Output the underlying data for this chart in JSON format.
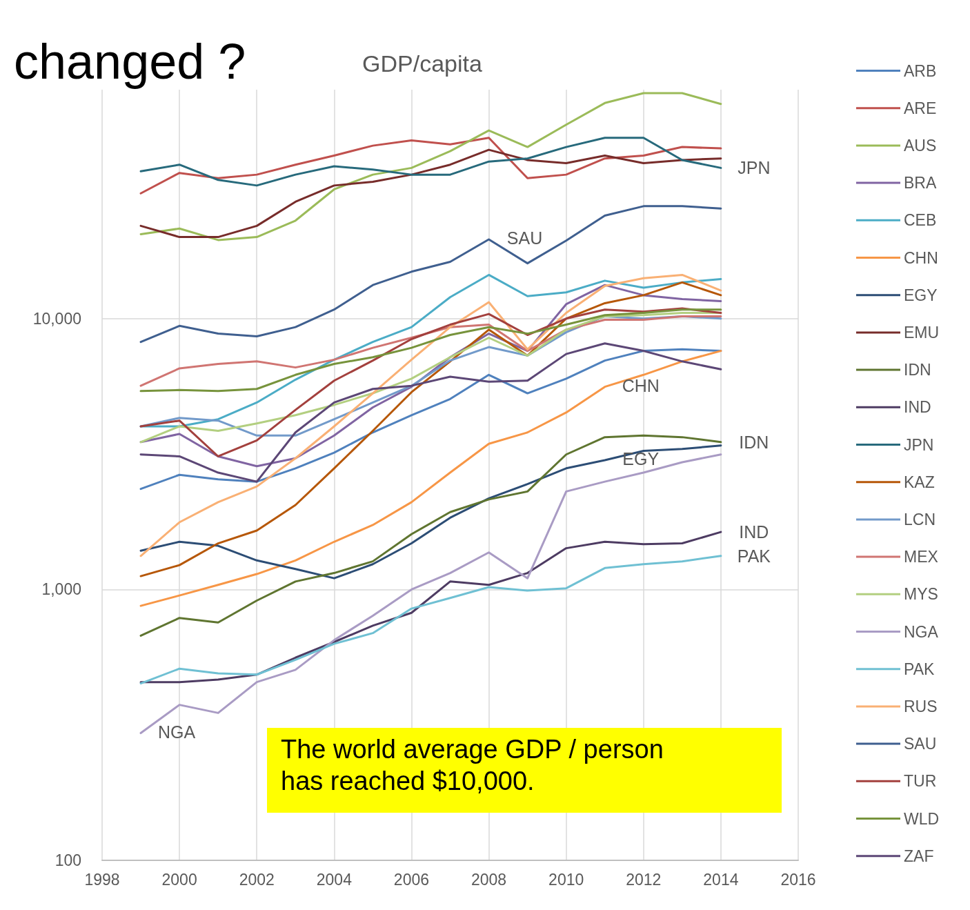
{
  "chart_data": {
    "type": "line",
    "title": "GDP/capita",
    "subtitle": "changed ?",
    "x": [
      1999,
      2000,
      2001,
      2002,
      2003,
      2004,
      2005,
      2006,
      2007,
      2008,
      2009,
      2010,
      2011,
      2012,
      2013,
      2014
    ],
    "xlim": [
      1998,
      2016
    ],
    "xticks": [
      1998,
      2000,
      2002,
      2004,
      2006,
      2008,
      2010,
      2012,
      2014,
      2016
    ],
    "ylim": [
      100,
      70000
    ],
    "yticks": [
      100,
      {
        "value": 1000,
        "label": "1,000"
      },
      {
        "value": 10000,
        "label": "10,000"
      }
    ],
    "log": "y",
    "grid": true,
    "legend": "right",
    "marker": "none",
    "line_style": "solid",
    "series": [
      {
        "name": "ARB",
        "color": "#4f81bd",
        "values": [
          2350,
          2650,
          2550,
          2500,
          2800,
          3200,
          3800,
          4400,
          5050,
          6200,
          5300,
          6000,
          7000,
          7600,
          7700,
          7600
        ]
      },
      {
        "name": "ARE",
        "color": "#c0504d",
        "values": [
          29000,
          34500,
          33000,
          34000,
          37000,
          40000,
          43500,
          45500,
          44000,
          46500,
          33000,
          34000,
          39000,
          40000,
          43000,
          42500
        ]
      },
      {
        "name": "AUS",
        "color": "#9bbb59",
        "values": [
          20500,
          21500,
          19500,
          20000,
          23000,
          30000,
          34000,
          36000,
          41500,
          49500,
          43000,
          52000,
          62500,
          68000,
          68000,
          62000
        ]
      },
      {
        "name": "BRA",
        "color": "#8064a2",
        "values": [
          3500,
          3750,
          3100,
          2850,
          3050,
          3700,
          4700,
          5600,
          7200,
          8800,
          7600,
          11300,
          13300,
          12200,
          11800,
          11600
        ]
      },
      {
        "name": "CEB",
        "color": "#4bacc6",
        "values": [
          4000,
          4000,
          4250,
          4900,
          5950,
          7050,
          8200,
          9300,
          12000,
          14500,
          12100,
          12500,
          13800,
          13000,
          13600,
          14000
        ]
      },
      {
        "name": "CHN",
        "color": "#f79646",
        "values": [
          870,
          950,
          1040,
          1140,
          1280,
          1500,
          1730,
          2100,
          2700,
          3450,
          3800,
          4500,
          5600,
          6200,
          6950,
          7600
        ]
      },
      {
        "name": "EGY",
        "color": "#2c4d75",
        "values": [
          1390,
          1500,
          1450,
          1280,
          1190,
          1100,
          1240,
          1480,
          1840,
          2170,
          2450,
          2800,
          3000,
          3250,
          3300,
          3400
        ]
      },
      {
        "name": "EMU",
        "color": "#772c2a",
        "values": [
          22000,
          20000,
          20000,
          22000,
          27000,
          31000,
          32000,
          34000,
          37000,
          42000,
          38500,
          37500,
          40000,
          37500,
          38500,
          39000
        ]
      },
      {
        "name": "IDN",
        "color": "#5f7530",
        "values": [
          675,
          785,
          755,
          910,
          1070,
          1150,
          1270,
          1600,
          1930,
          2150,
          2300,
          3150,
          3650,
          3700,
          3650,
          3500
        ]
      },
      {
        "name": "IND",
        "color": "#4d3b62",
        "values": [
          455,
          455,
          465,
          485,
          560,
          640,
          735,
          820,
          1070,
          1040,
          1150,
          1420,
          1500,
          1470,
          1480,
          1630
        ]
      },
      {
        "name": "JPN",
        "color": "#276a7c",
        "values": [
          35000,
          37000,
          32500,
          31000,
          34000,
          36500,
          35500,
          34000,
          34000,
          38000,
          39000,
          43000,
          46500,
          46500,
          38500,
          36000
        ]
      },
      {
        "name": "KAZ",
        "color": "#b65708",
        "values": [
          1120,
          1230,
          1480,
          1650,
          2050,
          2800,
          3850,
          5350,
          6950,
          9100,
          7300,
          10000,
          11400,
          12200,
          13600,
          12200
        ]
      },
      {
        "name": "LCN",
        "color": "#729aca",
        "values": [
          4000,
          4300,
          4200,
          3700,
          3700,
          4250,
          4900,
          5650,
          7000,
          7850,
          7300,
          8900,
          10200,
          10000,
          10200,
          10000
        ]
      },
      {
        "name": "MEX",
        "color": "#d07572",
        "values": [
          5650,
          6550,
          6800,
          6950,
          6600,
          7050,
          7800,
          8500,
          9300,
          9500,
          7600,
          9100,
          9900,
          9900,
          10200,
          10200
        ]
      },
      {
        "name": "MYS",
        "color": "#b3cf80",
        "values": [
          3500,
          4000,
          3850,
          4100,
          4400,
          4800,
          5300,
          6000,
          7200,
          8500,
          7300,
          9100,
          10200,
          10300,
          10500,
          10500
        ]
      },
      {
        "name": "NGA",
        "color": "#a99bc4",
        "values": [
          295,
          375,
          350,
          455,
          505,
          650,
          800,
          1000,
          1150,
          1370,
          1100,
          2300,
          2500,
          2700,
          2950,
          3150
        ]
      },
      {
        "name": "PAK",
        "color": "#6fc0d3",
        "values": [
          450,
          510,
          490,
          485,
          550,
          630,
          690,
          850,
          930,
          1020,
          990,
          1010,
          1200,
          1240,
          1270,
          1330
        ]
      },
      {
        "name": "RUS",
        "color": "#f9b074",
        "values": [
          1330,
          1770,
          2100,
          2400,
          3050,
          4000,
          5300,
          7050,
          9300,
          11500,
          7700,
          10500,
          13200,
          14100,
          14500,
          12700
        ]
      },
      {
        "name": "SAU",
        "color": "#3f5f8f",
        "values": [
          8200,
          9400,
          8800,
          8600,
          9300,
          10800,
          13300,
          14900,
          16200,
          19600,
          16000,
          19400,
          24000,
          26000,
          26000,
          25500
        ]
      },
      {
        "name": "TUR",
        "color": "#a3403d",
        "values": [
          4000,
          4200,
          3100,
          3550,
          4600,
          5900,
          7000,
          8400,
          9500,
          10400,
          8700,
          10000,
          10800,
          10600,
          10900,
          10500
        ]
      },
      {
        "name": "WLD",
        "color": "#77933c",
        "values": [
          5400,
          5450,
          5400,
          5500,
          6200,
          6800,
          7200,
          7800,
          8700,
          9300,
          8800,
          9500,
          10300,
          10500,
          10800,
          10800
        ]
      },
      {
        "name": "ZAF",
        "color": "#5c4776",
        "values": [
          3150,
          3100,
          2700,
          2500,
          3800,
          4900,
          5500,
          5650,
          6100,
          5850,
          5900,
          7400,
          8100,
          7600,
          6950,
          6500
        ]
      }
    ],
    "annotations": [
      {
        "text": "JPN",
        "x": 2014,
        "y": 36000
      },
      {
        "text": "SAU",
        "x": 2008,
        "y": 19600
      },
      {
        "text": "CHN",
        "x": 2011,
        "y": 5600
      },
      {
        "text": "EGY",
        "x": 2011,
        "y": 3000
      },
      {
        "text": "IDN",
        "x": 2014,
        "y": 3500
      },
      {
        "text": "IND",
        "x": 2014,
        "y": 1630
      },
      {
        "text": "PAK",
        "x": 2014,
        "y": 1330
      },
      {
        "text": "NGA",
        "x": 1999,
        "y": 295
      },
      "The world average GDP / person has reached $10,000."
    ]
  }
}
